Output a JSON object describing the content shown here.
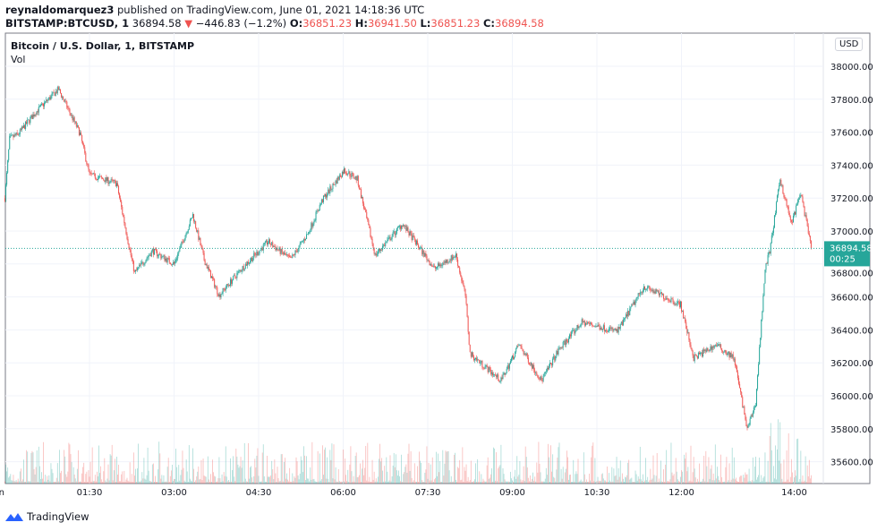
{
  "header": {
    "author": "reynaldomarquez3",
    "published_text": "published on TradingView.com, June 01, 2021 14:18:36 UTC",
    "symbol": "BITSTAMP:BTCUSD, 1",
    "last": "36894.58",
    "change": "−446.83 (−1.2%)",
    "o_label": "O:",
    "o": "36851.23",
    "h_label": "H:",
    "h": "36941.50",
    "l_label": "L:",
    "l": "36851.23",
    "c_label": "C:",
    "c": "36894.58"
  },
  "legend": {
    "title": "Bitcoin / U.S. Dollar, 1, BITSTAMP",
    "vol": "Vol"
  },
  "currency_button": "USD",
  "price_label": {
    "price": "36894.58",
    "countdown": "00:25"
  },
  "footer": {
    "brand": "TradingView"
  },
  "colors": {
    "up": "#26a69a",
    "down": "#ef5350",
    "grid": "#f0f3fa"
  },
  "chart_data": {
    "type": "candlestick",
    "interval": "1 minute",
    "ylim": [
      35480,
      38150
    ],
    "yticks": [
      "38000.00",
      "37800.00",
      "37600.00",
      "37400.00",
      "37200.00",
      "37000.00",
      "36800.00",
      "36600.00",
      "36400.00",
      "36200.00",
      "36000.00",
      "35800.00",
      "35600.00"
    ],
    "xticks": [
      "Jun",
      "01:30",
      "03:00",
      "04:30",
      "06:00",
      "07:30",
      "09:00",
      "10:30",
      "12:00",
      "14:00"
    ],
    "xlim": [
      "00:00",
      "14:18"
    ],
    "current_price": 36894.58,
    "grid": true,
    "approx_close_path": [
      [
        "00:00",
        37200
      ],
      [
        "00:05",
        37560
      ],
      [
        "00:14",
        37587
      ],
      [
        "00:33",
        37723
      ],
      [
        "00:57",
        37860
      ],
      [
        "01:20",
        37590
      ],
      [
        "01:30",
        37342
      ],
      [
        "01:59",
        37288
      ],
      [
        "02:13",
        36880
      ],
      [
        "02:18",
        36745
      ],
      [
        "02:37",
        36880
      ],
      [
        "03:00",
        36800
      ],
      [
        "03:20",
        37098
      ],
      [
        "03:32",
        36826
      ],
      [
        "03:48",
        36609
      ],
      [
        "04:12",
        36772
      ],
      [
        "04:40",
        36935
      ],
      [
        "05:04",
        36826
      ],
      [
        "05:23",
        36990
      ],
      [
        "05:37",
        37180
      ],
      [
        "06:01",
        37370
      ],
      [
        "06:15",
        37315
      ],
      [
        "06:34",
        36853
      ],
      [
        "07:03",
        37043
      ],
      [
        "07:37",
        36772
      ],
      [
        "08:00",
        36853
      ],
      [
        "08:10",
        36609
      ],
      [
        "08:15",
        36255
      ],
      [
        "08:48",
        36092
      ],
      [
        "09:07",
        36310
      ],
      [
        "09:31",
        36092
      ],
      [
        "09:50",
        36283
      ],
      [
        "10:14",
        36446
      ],
      [
        "10:52",
        36391
      ],
      [
        "11:20",
        36663
      ],
      [
        "11:59",
        36554
      ],
      [
        "12:13",
        36228
      ],
      [
        "12:37",
        36310
      ],
      [
        "12:56",
        36228
      ],
      [
        "13:10",
        35793
      ],
      [
        "13:19",
        35957
      ],
      [
        "13:29",
        36772
      ],
      [
        "13:34",
        36880
      ],
      [
        "13:45",
        37315
      ],
      [
        "13:57",
        37043
      ],
      [
        "14:07",
        37234
      ],
      [
        "14:18",
        36894.58
      ]
    ]
  }
}
